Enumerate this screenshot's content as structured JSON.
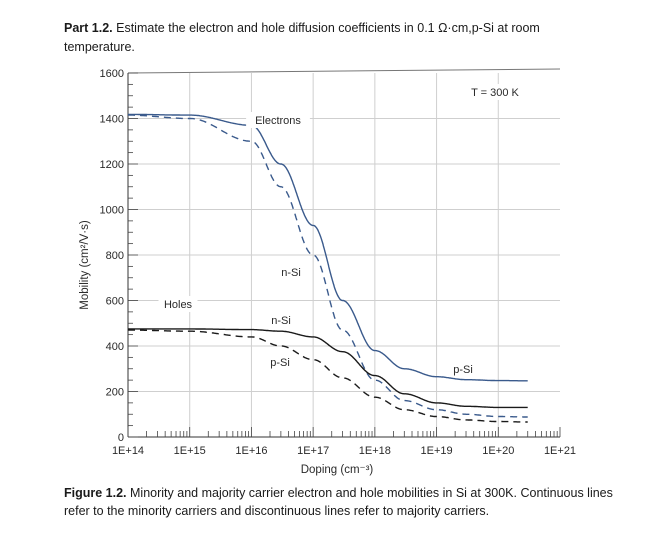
{
  "problem": {
    "label": "Part 1.2.",
    "text": "Estimate the electron and hole diffusion coefficients in 0.1 Ω·cm,p-Si at room",
    "text2": "temperature."
  },
  "caption": {
    "label": "Figure 1.2.",
    "text": "Minority and majority carrier electron and hole mobilities in Si at 300K. Continuous lines refer to the minority carriers and discontinuous lines refer to majority carriers."
  },
  "chart_data": {
    "type": "line",
    "xlabel": "Doping (cm⁻³)",
    "ylabel": "Mobility (cm²/V·s)",
    "x_scale": "log",
    "xlim": [
      100000000000000.0,
      1e+21
    ],
    "ylim": [
      0,
      1600
    ],
    "x_tick_labels": [
      "1E+14",
      "1E+15",
      "1E+16",
      "1E+17",
      "1E+18",
      "1E+19",
      "1E+20",
      "1E+21"
    ],
    "y_tick_labels": [
      "0",
      "200",
      "400",
      "600",
      "800",
      "1000",
      "1200",
      "1400",
      "1600"
    ],
    "grid": true,
    "annotations": [
      "T = 300 K",
      "Electrons",
      "Holes",
      "n-Si",
      "n-Si",
      "p-Si",
      "p-Si"
    ],
    "series": [
      {
        "carrier": "electron",
        "carrier_type": "minority",
        "style": "solid",
        "color": "#3a5a8c",
        "x": [
          100000000000000.0,
          1000000000000000.0,
          1e+16,
          3e+16,
          1e+17,
          3e+17,
          1e+18,
          3e+18,
          1e+19,
          3e+19,
          1e+20,
          3e+20
        ],
        "y": [
          1418,
          1415,
          1370,
          1200,
          930,
          600,
          380,
          300,
          265,
          252,
          248,
          247
        ]
      },
      {
        "carrier": "electron",
        "carrier_type": "majority",
        "style": "dashed",
        "color": "#3a5a8c",
        "x": [
          100000000000000.0,
          1000000000000000.0,
          1e+16,
          3e+16,
          1e+17,
          3e+17,
          1e+18,
          3e+18,
          1e+19,
          3e+19,
          1e+20,
          3e+20
        ],
        "y": [
          1415,
          1400,
          1300,
          1100,
          800,
          470,
          250,
          160,
          120,
          100,
          90,
          88
        ]
      },
      {
        "carrier": "hole",
        "carrier_type": "minority",
        "style": "solid",
        "color": "#1a1a1a",
        "x": [
          100000000000000.0,
          1000000000000000.0,
          1e+16,
          3e+16,
          1e+17,
          3e+17,
          1e+18,
          3e+18,
          1e+19,
          3e+19,
          1e+20,
          3e+20
        ],
        "y": [
          475,
          475,
          472,
          465,
          440,
          375,
          270,
          190,
          150,
          135,
          130,
          130
        ]
      },
      {
        "carrier": "hole",
        "carrier_type": "majority",
        "style": "dashed",
        "color": "#1a1a1a",
        "x": [
          100000000000000.0,
          1000000000000000.0,
          1e+16,
          3e+16,
          1e+17,
          3e+17,
          1e+18,
          3e+18,
          1e+19,
          3e+19,
          1e+20,
          3e+20
        ],
        "y": [
          470,
          465,
          440,
          400,
          340,
          260,
          175,
          120,
          90,
          75,
          68,
          66
        ]
      }
    ]
  }
}
